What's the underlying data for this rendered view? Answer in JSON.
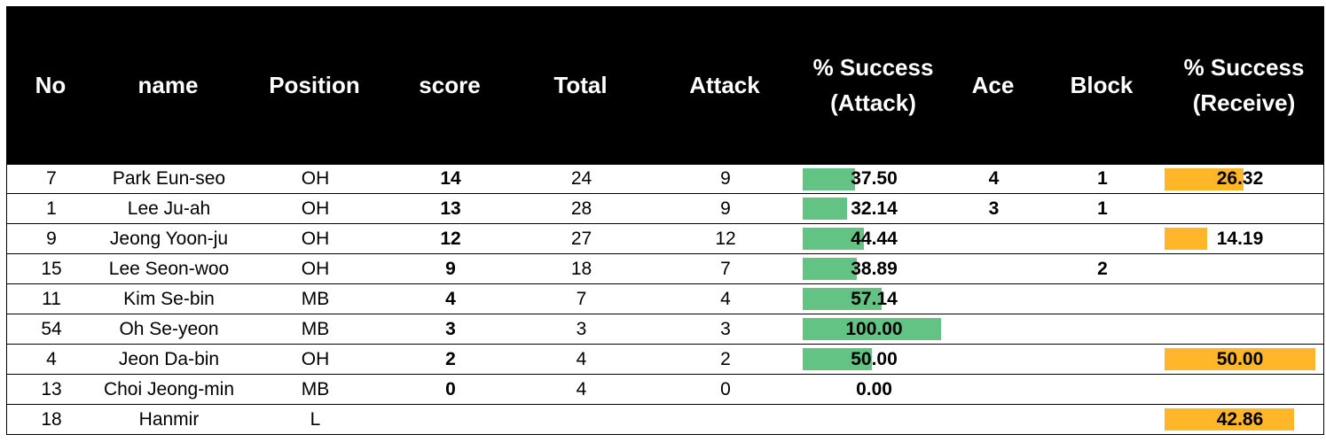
{
  "headers": {
    "no": "No",
    "name": "name",
    "position": "Position",
    "score": "score",
    "total": "Total",
    "attack": "Attack",
    "success_attack": "% Success\n(Attack)",
    "ace": "Ace",
    "block": "Block",
    "success_receive": "%  Success\n(Receive)"
  },
  "rows": [
    {
      "no": "7",
      "name": "Park Eun-seo",
      "position": "OH",
      "score": "14",
      "total": "24",
      "attack": "9",
      "success_attack": "37.50",
      "attack_pct": 37.5,
      "ace": "4",
      "block": "1",
      "success_receive": "26.32",
      "receive_pct": 26.32
    },
    {
      "no": "1",
      "name": "Lee Ju-ah",
      "position": "OH",
      "score": "13",
      "total": "28",
      "attack": "9",
      "success_attack": "32.14",
      "attack_pct": 32.14,
      "ace": "3",
      "block": "1",
      "success_receive": "",
      "receive_pct": null
    },
    {
      "no": "9",
      "name": "Jeong Yoon-ju",
      "position": "OH",
      "score": "12",
      "total": "27",
      "attack": "12",
      "success_attack": "44.44",
      "attack_pct": 44.44,
      "ace": "",
      "block": "",
      "success_receive": "14.19",
      "receive_pct": 14.19
    },
    {
      "no": "15",
      "name": "Lee Seon-woo",
      "position": "OH",
      "score": "9",
      "total": "18",
      "attack": "7",
      "success_attack": "38.89",
      "attack_pct": 38.89,
      "ace": "",
      "block": "2",
      "success_receive": "",
      "receive_pct": null
    },
    {
      "no": "11",
      "name": "Kim Se-bin",
      "position": "MB",
      "score": "4",
      "total": "7",
      "attack": "4",
      "success_attack": "57.14",
      "attack_pct": 57.14,
      "ace": "",
      "block": "",
      "success_receive": "",
      "receive_pct": null
    },
    {
      "no": "54",
      "name": "Oh Se-yeon",
      "position": "MB",
      "score": "3",
      "total": "3",
      "attack": "3",
      "success_attack": "100.00",
      "attack_pct": 100,
      "ace": "",
      "block": "",
      "success_receive": "",
      "receive_pct": null
    },
    {
      "no": "4",
      "name": "Jeon Da-bin",
      "position": "OH",
      "score": "2",
      "total": "4",
      "attack": "2",
      "success_attack": "50.00",
      "attack_pct": 50,
      "ace": "",
      "block": "",
      "success_receive": "50.00",
      "receive_pct": 50
    },
    {
      "no": "13",
      "name": "Choi Jeong-min",
      "position": "MB",
      "score": "0",
      "total": "4",
      "attack": "0",
      "success_attack": "0.00",
      "attack_pct": 0,
      "ace": "",
      "block": "",
      "success_receive": "",
      "receive_pct": null
    },
    {
      "no": "18",
      "name": "Hanmir",
      "position": "L",
      "score": "",
      "total": "",
      "attack": "",
      "success_attack": "",
      "attack_pct": null,
      "ace": "",
      "block": "",
      "success_receive": "42.86",
      "receive_pct": 42.86
    }
  ],
  "colors": {
    "header_bg": "#000000",
    "header_text": "#ffffff",
    "attack_bar": "#63c384",
    "receive_bar": "#ffb628"
  }
}
